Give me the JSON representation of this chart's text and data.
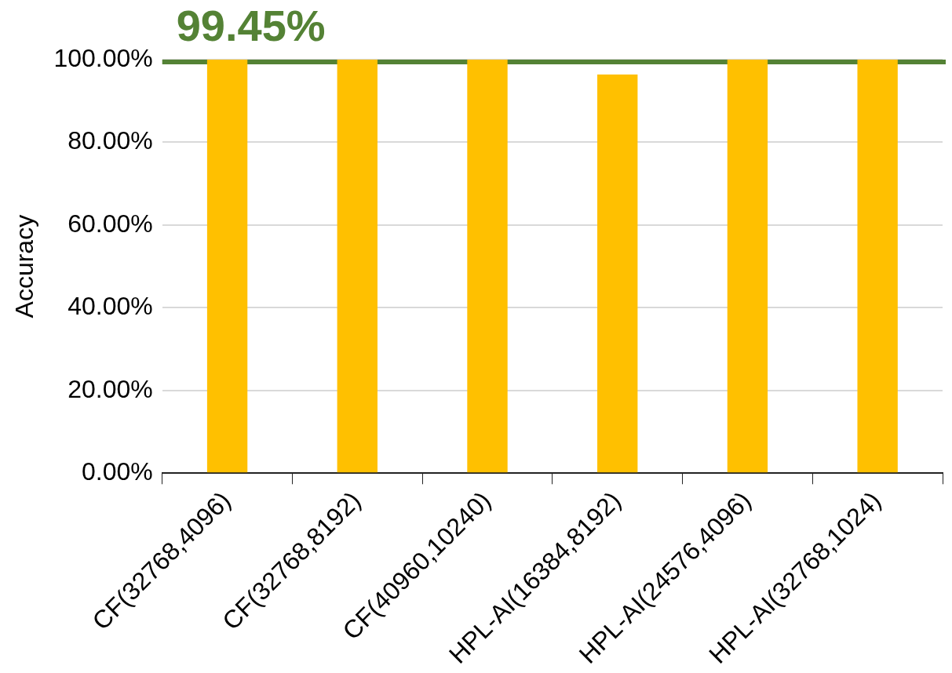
{
  "chart_data": {
    "type": "bar",
    "ylabel": "Accuracy",
    "categories": [
      "CF(32768,4096)",
      "CF(32768,8192)",
      "CF(40960,10240)",
      "HPL-AI(16384,8192)",
      "HPL-AI(24576,4096)",
      "HPL-AI(32768,1024)"
    ],
    "values": [
      100,
      100,
      100,
      96.4,
      100,
      100
    ],
    "color": "#ffc000",
    "ylim": [
      0,
      100
    ],
    "yticks": [
      {
        "value": 0,
        "label": "0.00%"
      },
      {
        "value": 20,
        "label": "20.00%"
      },
      {
        "value": 40,
        "label": "40.00%"
      },
      {
        "value": 60,
        "label": "60.00%"
      },
      {
        "value": 80,
        "label": "80.00%"
      },
      {
        "value": 100,
        "label": "100.00%"
      }
    ],
    "grid": "y",
    "legend": false,
    "ref_lines": [
      {
        "axis": "y",
        "value": 99.45,
        "label": "99.45%",
        "color": "#548235"
      }
    ]
  }
}
